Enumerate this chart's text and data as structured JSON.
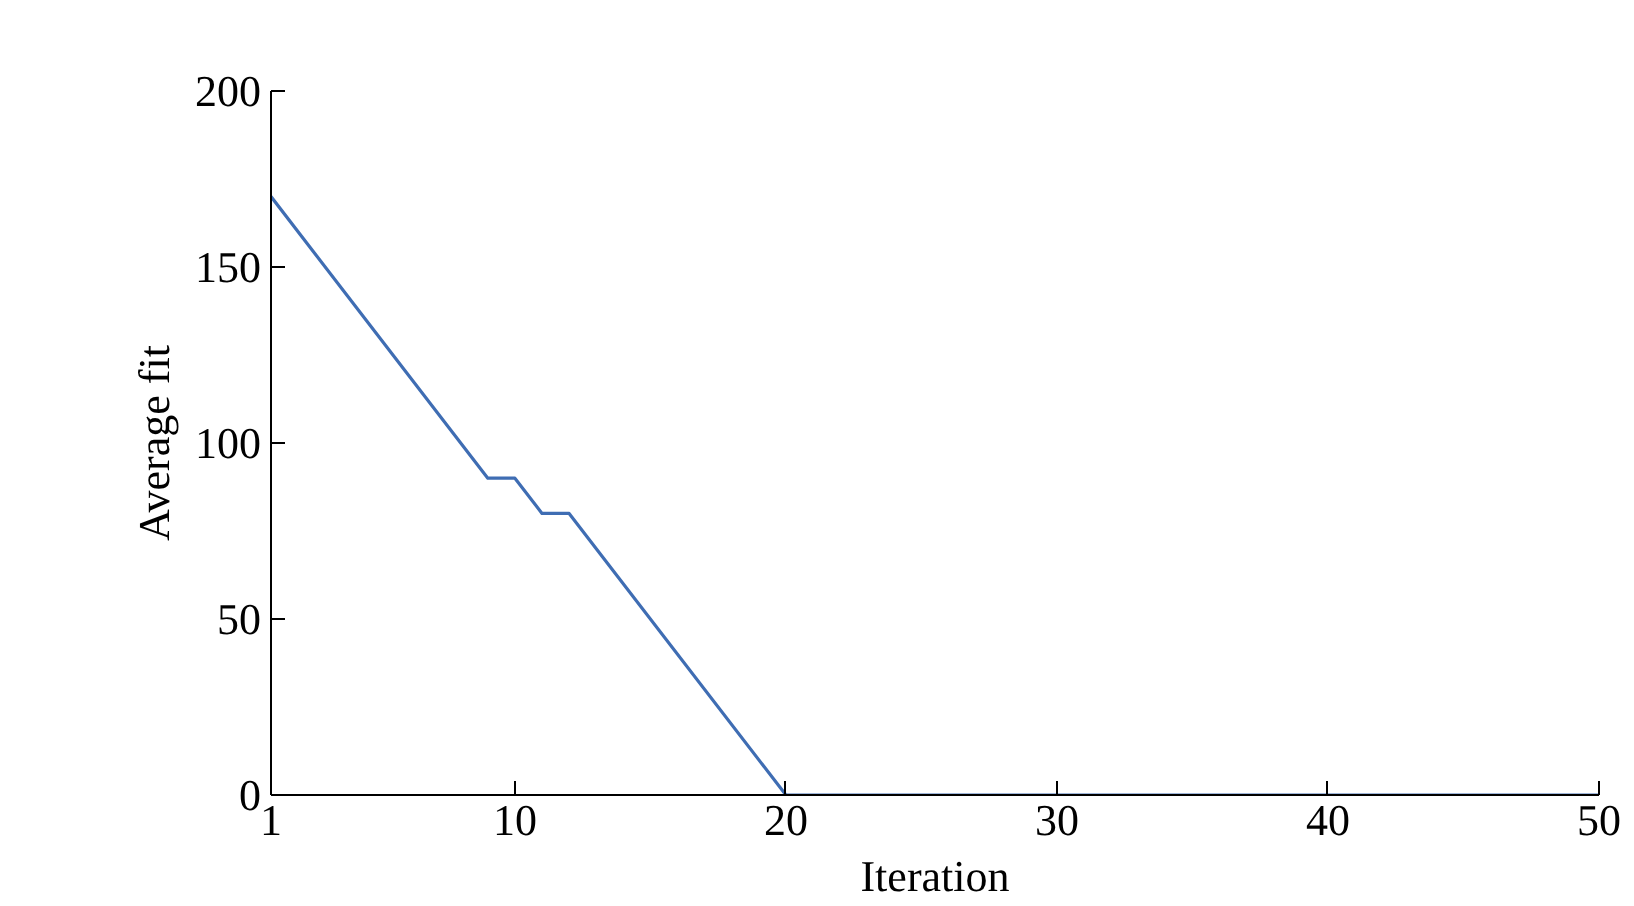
{
  "chart_data": {
    "type": "line",
    "xlabel": "Iteration",
    "ylabel": "Average fit",
    "x": [
      1,
      9,
      10,
      11,
      12,
      20,
      50
    ],
    "series": [
      {
        "color": "#3f6db3",
        "values": [
          170,
          90,
          90,
          80,
          80,
          0,
          0
        ]
      }
    ],
    "xlim": [
      1,
      50
    ],
    "xticks": [
      1,
      10,
      20,
      30,
      40,
      50
    ],
    "ylim": [
      0,
      200
    ],
    "yticks": [
      0,
      50,
      100,
      150,
      200
    ],
    "grid": false,
    "marker": "none",
    "line_style": "solid"
  }
}
